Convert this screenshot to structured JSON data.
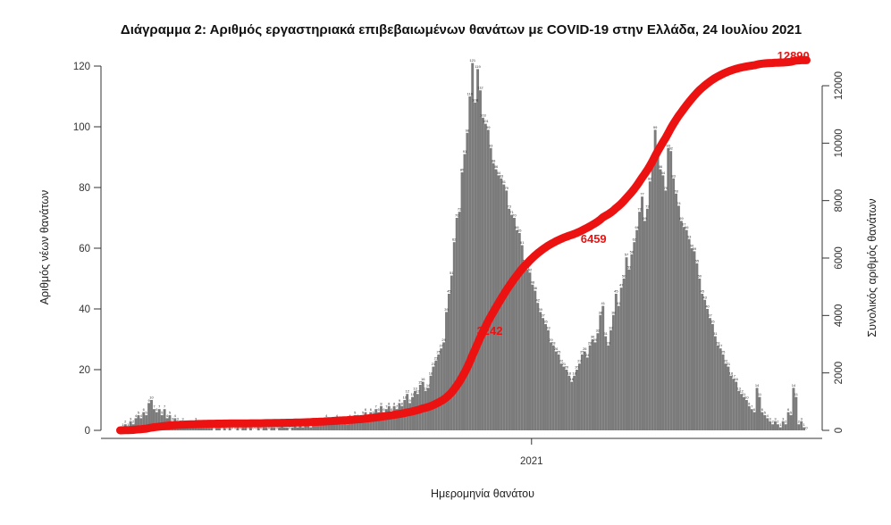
{
  "page": {
    "background": "#ffffff"
  },
  "chart_data": {
    "type": "bar",
    "title": "Διάγραμμα 2: Αριθμός εργαστηριακά επιβεβαιωμένων θανάτων με COVID-19 στην Ελλάδα, 24 Ιουλίου 2021",
    "xlabel": "Ημερομηνία θανάτου",
    "ylabel_left": "Αριθμός νέων θανάτων",
    "ylabel_right": "Συνολικός αριθμός θανάτων",
    "grid": false,
    "x_axis": {
      "tick_labels": [
        {
          "label": "2021",
          "frac": 0.597
        }
      ],
      "range_note": "daily deaths from March 2020 to 24 July 2021, values estimated from pixels in ~2-day bins"
    },
    "y_left": {
      "ticks": [
        0,
        20,
        40,
        60,
        80,
        100,
        120
      ],
      "lim": [
        0,
        125
      ]
    },
    "y_right": {
      "ticks": [
        0,
        2000,
        4000,
        6000,
        8000,
        10000,
        12000
      ],
      "lim": [
        0,
        12890
      ]
    },
    "series": [
      {
        "name": "daily-deaths",
        "type": "bar",
        "color": "#7b7b7b",
        "values": [
          0,
          1,
          2,
          1,
          3,
          2,
          4,
          5,
          4,
          6,
          5,
          9,
          10,
          7,
          6,
          7,
          5,
          7,
          4,
          5,
          3,
          4,
          3,
          2,
          3,
          2,
          2,
          1,
          2,
          3,
          2,
          1,
          1,
          2,
          1,
          1,
          0,
          1,
          1,
          0,
          1,
          0,
          1,
          0,
          0,
          1,
          0,
          1,
          1,
          0,
          1,
          0,
          0,
          1,
          0,
          1,
          1,
          0,
          1,
          1,
          0,
          1,
          2,
          1,
          1,
          0,
          1,
          2,
          1,
          2,
          1,
          2,
          2,
          1,
          3,
          2,
          2,
          3,
          2,
          4,
          3,
          2,
          3,
          4,
          3,
          2,
          3,
          2,
          4,
          3,
          5,
          4,
          3,
          5,
          6,
          4,
          6,
          5,
          7,
          6,
          8,
          6,
          7,
          8,
          6,
          8,
          7,
          9,
          8,
          10,
          12,
          9,
          11,
          13,
          12,
          15,
          16,
          13,
          14,
          18,
          21,
          23,
          25,
          27,
          29,
          39,
          45,
          51,
          62,
          70,
          72,
          85,
          91,
          98,
          110,
          121,
          108,
          119,
          112,
          103,
          101,
          99,
          93,
          88,
          86,
          84,
          83,
          81,
          79,
          73,
          71,
          70,
          66,
          65,
          61,
          55,
          53,
          52,
          48,
          46,
          42,
          39,
          37,
          35,
          33,
          29,
          28,
          26,
          25,
          22,
          21,
          20,
          18,
          16,
          18,
          20,
          22,
          25,
          26,
          24,
          28,
          30,
          29,
          32,
          38,
          41,
          31,
          28,
          33,
          38,
          45,
          41,
          47,
          50,
          57,
          53,
          58,
          62,
          66,
          72,
          77,
          69,
          73,
          82,
          89,
          99,
          92,
          86,
          84,
          79,
          93,
          92,
          83,
          78,
          74,
          69,
          67,
          66,
          63,
          60,
          59,
          55,
          50,
          45,
          43,
          40,
          37,
          35,
          31,
          28,
          27,
          25,
          22,
          21,
          18,
          17,
          16,
          13,
          12,
          11,
          10,
          8,
          7,
          6,
          14,
          11,
          6,
          5,
          4,
          3,
          2,
          3,
          2,
          1,
          3,
          2,
          6,
          5,
          14,
          11,
          2,
          3,
          1,
          0
        ]
      },
      {
        "name": "cumulative-deaths",
        "type": "line",
        "color": "#ec1212",
        "final_value": 12890,
        "derivation": "cumulative sum of daily deaths, scaled to final_value"
      }
    ],
    "annotations": [
      {
        "text": "3242",
        "fx": 0.539,
        "fy": 0.746
      },
      {
        "text": "6459",
        "fx": 0.683,
        "fy": 0.502
      },
      {
        "text": "12890",
        "fx": 0.96,
        "fy": 0.017
      }
    ],
    "peak_values": {
      "second_wave_max": 121,
      "third_wave_max": 99
    }
  }
}
